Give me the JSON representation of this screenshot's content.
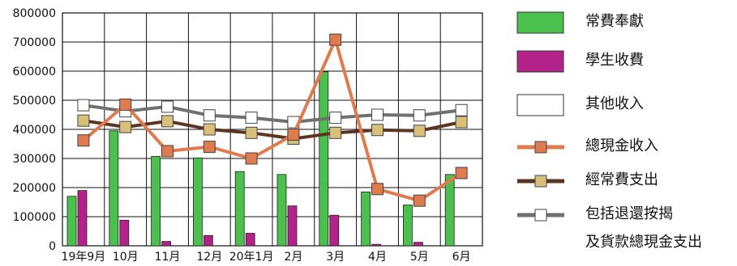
{
  "chart_data": {
    "type": "bar",
    "categories": [
      "19年9月",
      "10月",
      "11月",
      "12月",
      "20年1月",
      "2月",
      "3月",
      "4月",
      "5月",
      "6月"
    ],
    "ylim": [
      0,
      800000
    ],
    "yticks": [
      0,
      100000,
      200000,
      300000,
      400000,
      500000,
      600000,
      700000,
      800000
    ],
    "grid": true,
    "legend_position": "right",
    "series": [
      {
        "name": "常費奉獻",
        "kind": "bar",
        "color": "#4cc04e",
        "values": [
          170000,
          395000,
          307000,
          302000,
          255000,
          245000,
          598000,
          185000,
          140000,
          245000
        ]
      },
      {
        "name": "學生收費",
        "kind": "bar",
        "color": "#b32289",
        "values": [
          190000,
          88000,
          15000,
          35000,
          43000,
          137000,
          105000,
          5000,
          12000,
          0
        ]
      },
      {
        "name": "其他收入",
        "kind": "bar",
        "color": "#ffffff",
        "values": [
          0,
          0,
          0,
          0,
          0,
          0,
          0,
          0,
          0,
          0
        ]
      },
      {
        "name": "總現金收入",
        "kind": "line",
        "color": "#e07b4f",
        "marker": "#e07b4f",
        "values": [
          362000,
          485000,
          325000,
          340000,
          300000,
          382000,
          708000,
          195000,
          155000,
          250000
        ]
      },
      {
        "name": "經常費支出",
        "kind": "line",
        "color": "#5b3520",
        "marker": "#d9c07a",
        "values": [
          430000,
          408000,
          428000,
          400000,
          388000,
          368000,
          388000,
          398000,
          395000,
          425000
        ]
      },
      {
        "name": "包括退還按揭\n及貨款總現金支出",
        "kind": "line",
        "color": "#707070",
        "marker": "#ffffff",
        "values": [
          483000,
          462000,
          478000,
          448000,
          440000,
          425000,
          440000,
          450000,
          448000,
          466000
        ]
      }
    ]
  },
  "legend": {
    "items": [
      {
        "label": "常費奉獻",
        "type": "box",
        "fill": "#4cc04e"
      },
      {
        "label": "學生收費",
        "type": "box",
        "fill": "#b32289"
      },
      {
        "label": "其他收入",
        "type": "box",
        "fill": "#ffffff"
      },
      {
        "label": "總現金收入",
        "type": "line",
        "line": "#e07b4f",
        "fill": "#e07b4f"
      },
      {
        "label": "經常費支出",
        "type": "line",
        "line": "#5b3520",
        "fill": "#d9c07a"
      },
      {
        "label": "包括退還按揭",
        "label2": "及貨款總現金支出",
        "type": "line",
        "line": "#707070",
        "fill": "#ffffff"
      }
    ]
  }
}
